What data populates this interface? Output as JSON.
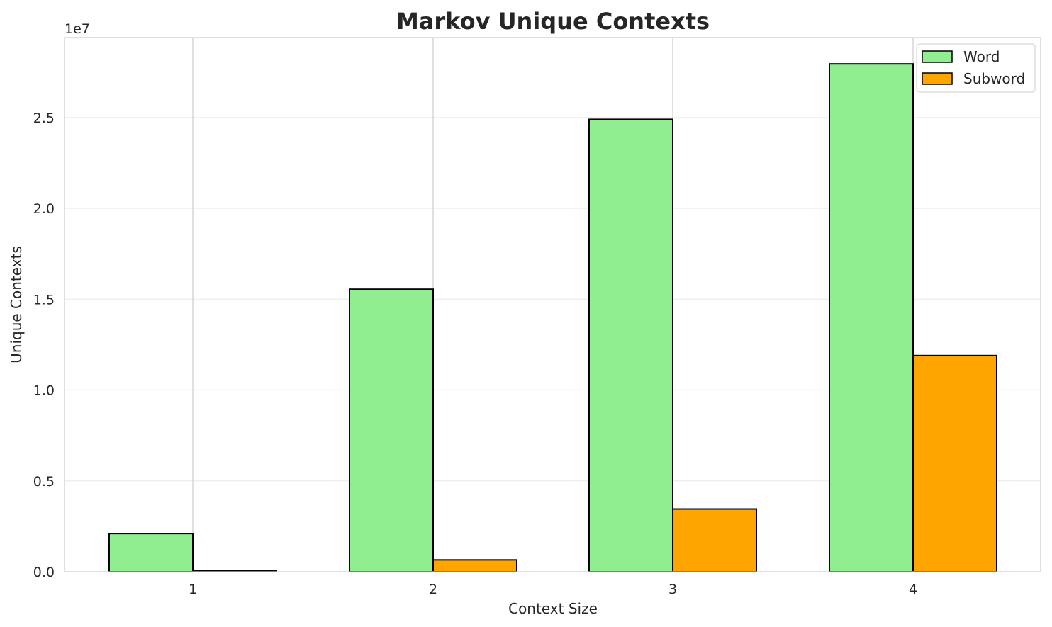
{
  "chart_data": {
    "type": "bar",
    "title": "Markov Unique Contexts",
    "xlabel": "Context Size",
    "ylabel": "Unique Contexts",
    "y_offset_label": "1e7",
    "categories": [
      "1",
      "2",
      "3",
      "4"
    ],
    "series": [
      {
        "name": "Word",
        "values": [
          2100000,
          15550000,
          24900000,
          27950000
        ],
        "color": "#90ee90"
      },
      {
        "name": "Subword",
        "values": [
          50000,
          650000,
          3450000,
          11900000
        ],
        "color": "#ffa500"
      }
    ],
    "ylim": [
      0,
      29400000
    ],
    "yticks": [
      0,
      5000000,
      10000000,
      15000000,
      20000000,
      25000000
    ],
    "ytick_labels": [
      "0.0",
      "0.5",
      "1.0",
      "1.5",
      "2.0",
      "2.5"
    ],
    "grid": true,
    "legend_position": "top-right"
  }
}
